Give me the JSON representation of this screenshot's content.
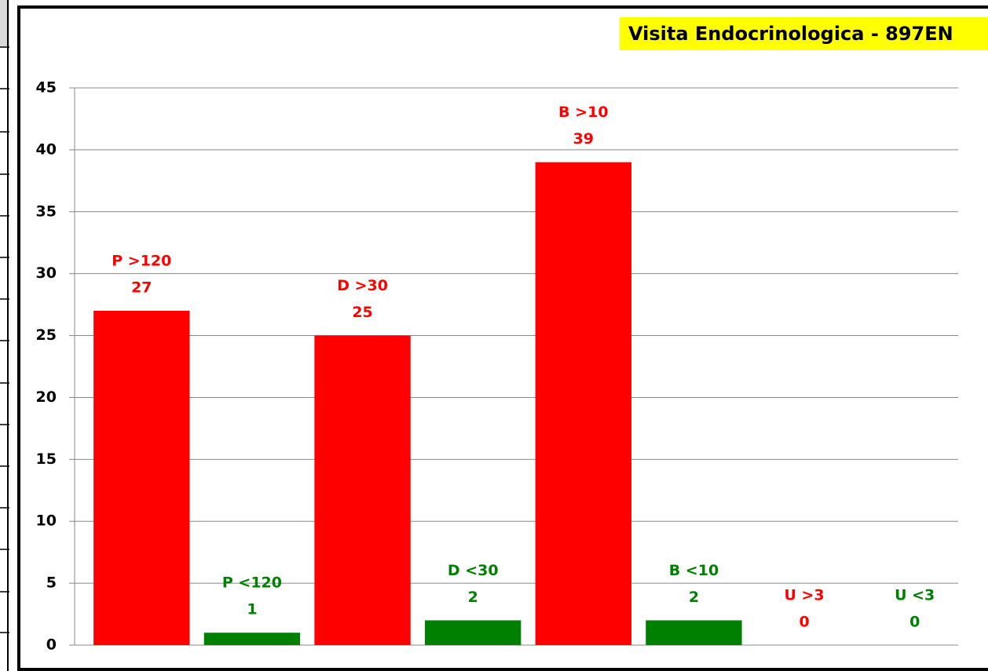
{
  "chart_data": {
    "type": "bar",
    "title": "Visita Endocrinologica - 897EN",
    "categories": [
      "P >120",
      "P <120",
      "D >30",
      "D <30",
      "B >10",
      "B <10",
      "U >3",
      "U <3"
    ],
    "values": [
      27,
      1,
      25,
      2,
      39,
      2,
      0,
      0
    ],
    "colors": [
      "#ff0000",
      "#008000",
      "#ff0000",
      "#008000",
      "#ff0000",
      "#008000",
      "#ff0000",
      "#008000"
    ],
    "ylim": [
      0,
      45
    ],
    "yticks": [
      0,
      5,
      10,
      15,
      20,
      25,
      30,
      35,
      40,
      45
    ],
    "grid": true
  }
}
